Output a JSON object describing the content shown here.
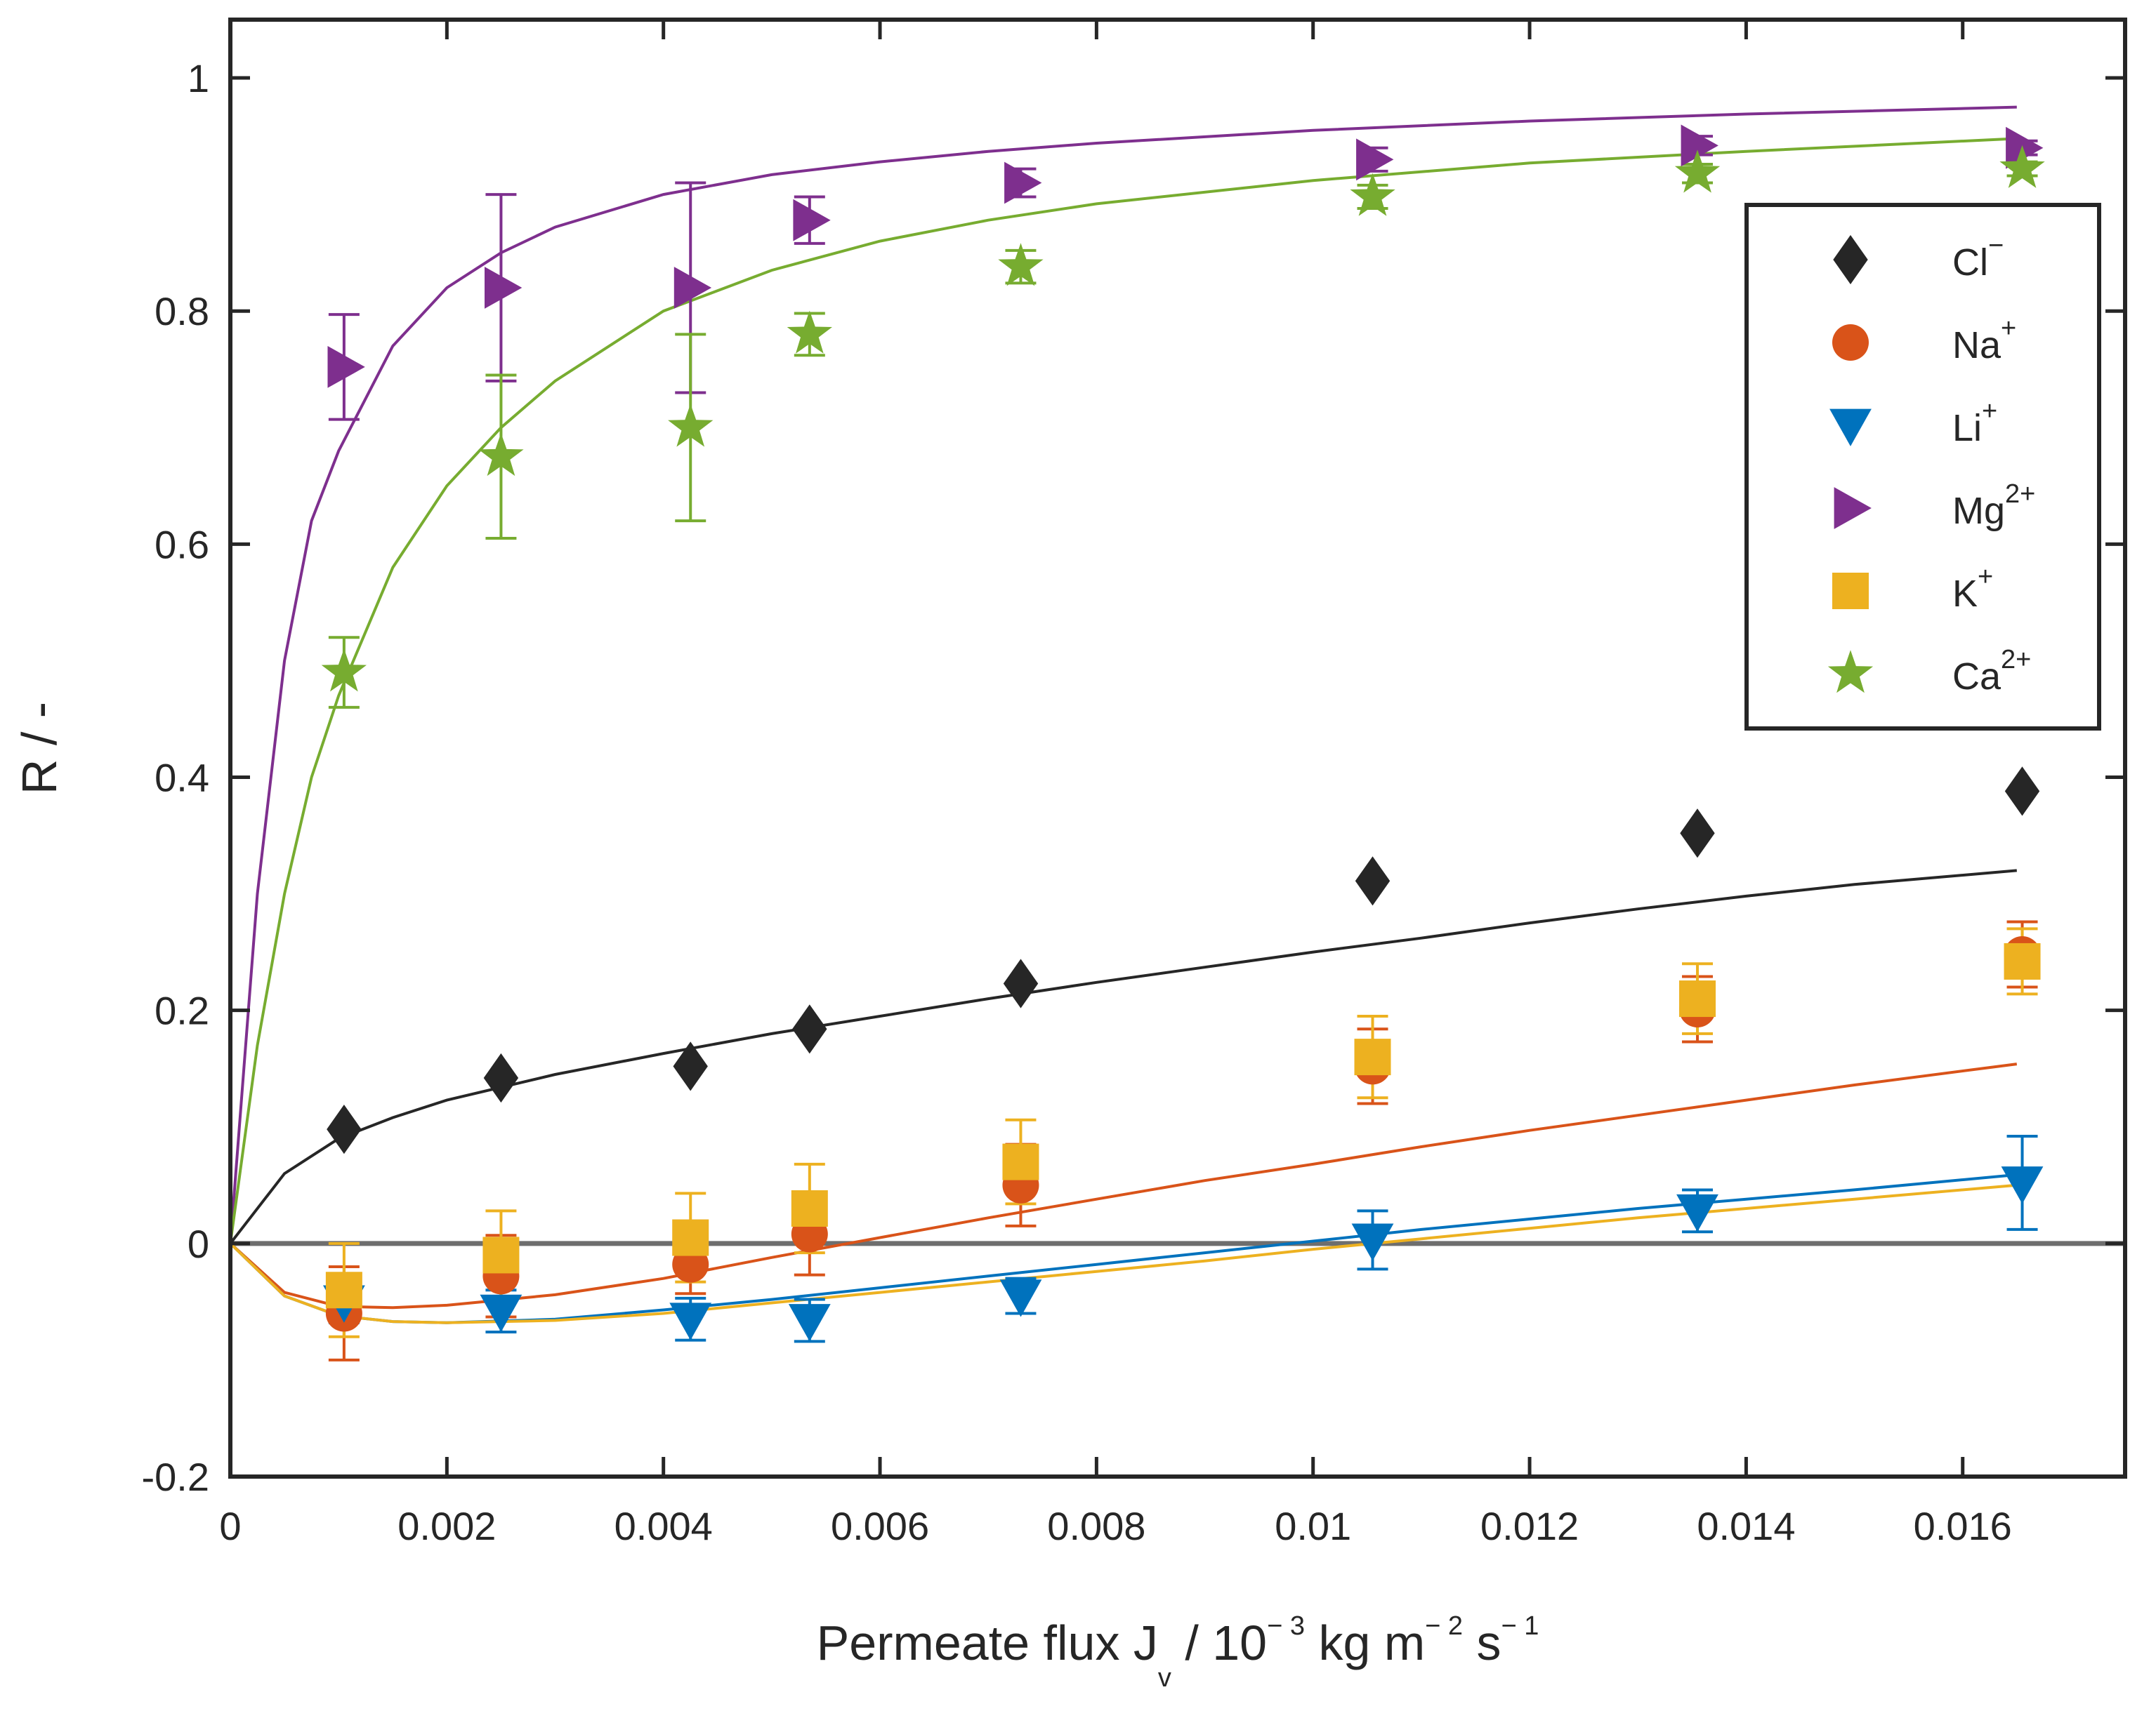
{
  "chart_data": {
    "type": "scatter",
    "title": "",
    "xlabel": {
      "main": "Permeate flux J",
      "sub": "v",
      "mid": " / 10",
      "exp1": "− 3",
      "mid2": " kg m",
      "exp2": "− 2",
      "mid3": " s",
      "exp3": "− 1"
    },
    "ylabel": "R / -",
    "xlim": [
      0,
      0.0175
    ],
    "ylim": [
      -0.2,
      1.05
    ],
    "xticks": [
      0,
      0.002,
      0.004,
      0.006,
      0.008,
      0.01,
      0.012,
      0.014,
      0.016
    ],
    "xtick_labels": [
      "0",
      "0.002",
      "0.004",
      "0.006",
      "0.008",
      "0.01",
      "0.012",
      "0.014",
      "0.016"
    ],
    "yticks": [
      -0.2,
      0,
      0.2,
      0.4,
      0.6,
      0.8,
      1
    ],
    "ytick_labels": [
      "-0.2",
      "0",
      "0.2",
      "0.4",
      "0.6",
      "0.8",
      "1"
    ],
    "reference_line": 0,
    "legend_position": "top-right",
    "x": [
      0.00105,
      0.0025,
      0.00425,
      0.00535,
      0.0073,
      0.01055,
      0.01355,
      0.01655
    ],
    "series": [
      {
        "name": "Cl",
        "sup": "−",
        "color": "#262626",
        "marker": "diamond",
        "values": [
          0.098,
          0.142,
          0.152,
          0.184,
          0.223,
          0.311,
          0.352,
          0.388
        ],
        "errors": [
          0,
          0,
          0,
          0,
          0,
          0,
          0,
          0
        ],
        "fit_x": [
          0,
          0.0005,
          0.001,
          0.0015,
          0.002,
          0.003,
          0.004,
          0.005,
          0.006,
          0.007,
          0.008,
          0.009,
          0.01,
          0.011,
          0.012,
          0.013,
          0.014,
          0.015,
          0.0165
        ],
        "fit_y": [
          0,
          0.06,
          0.09,
          0.108,
          0.123,
          0.145,
          0.163,
          0.18,
          0.195,
          0.21,
          0.224,
          0.237,
          0.25,
          0.262,
          0.275,
          0.287,
          0.298,
          0.308,
          0.32
        ]
      },
      {
        "name": "Na",
        "sup": "+",
        "color": "#D95319",
        "marker": "circle",
        "values": [
          -0.06,
          -0.028,
          -0.018,
          0.008,
          0.05,
          0.152,
          0.201,
          0.248
        ],
        "errors": [
          0.04,
          0.035,
          0.025,
          0.035,
          0.035,
          0.032,
          0.028,
          0.028
        ],
        "fit_x": [
          0,
          0.0005,
          0.001,
          0.0015,
          0.002,
          0.003,
          0.004,
          0.005,
          0.006,
          0.007,
          0.008,
          0.009,
          0.01,
          0.011,
          0.012,
          0.013,
          0.014,
          0.015,
          0.0165
        ],
        "fit_y": [
          0,
          -0.042,
          -0.054,
          -0.055,
          -0.053,
          -0.044,
          -0.03,
          -0.012,
          0.005,
          0.022,
          0.038,
          0.054,
          0.068,
          0.083,
          0.097,
          0.11,
          0.123,
          0.136,
          0.154
        ]
      },
      {
        "name": "Li",
        "sup": "+",
        "color": "#0072BD",
        "marker": "triangle-down",
        "values": [
          -0.05,
          -0.058,
          -0.065,
          -0.066,
          -0.045,
          0.003,
          0.028,
          0.052
        ],
        "errors": [
          0.018,
          0.018,
          0.018,
          0.018,
          0.015,
          0.025,
          0.018,
          0.04
        ],
        "fit_x": [
          0,
          0.0005,
          0.001,
          0.0015,
          0.002,
          0.003,
          0.004,
          0.005,
          0.006,
          0.007,
          0.008,
          0.009,
          0.01,
          0.011,
          0.012,
          0.013,
          0.014,
          0.015,
          0.0165
        ],
        "fit_y": [
          0,
          -0.045,
          -0.062,
          -0.067,
          -0.068,
          -0.065,
          -0.057,
          -0.048,
          -0.038,
          -0.028,
          -0.018,
          -0.008,
          0.002,
          0.012,
          0.021,
          0.03,
          0.038,
          0.046,
          0.059
        ]
      },
      {
        "name": "Mg",
        "sup": "2+",
        "color": "#7E2F8E",
        "marker": "triangle-right",
        "values": [
          0.752,
          0.82,
          0.82,
          0.878,
          0.91,
          0.93,
          0.942,
          0.94
        ],
        "errors": [
          0.045,
          0.08,
          0.09,
          0.02,
          0.012,
          0.01,
          0.008,
          0.006
        ],
        "fit_x": [
          0,
          0.00025,
          0.0005,
          0.00075,
          0.001,
          0.0015,
          0.002,
          0.0025,
          0.003,
          0.004,
          0.005,
          0.006,
          0.007,
          0.008,
          0.01,
          0.012,
          0.014,
          0.0165
        ],
        "fit_y": [
          0,
          0.3,
          0.5,
          0.62,
          0.68,
          0.77,
          0.82,
          0.85,
          0.872,
          0.9,
          0.917,
          0.928,
          0.937,
          0.944,
          0.955,
          0.963,
          0.969,
          0.975
        ]
      },
      {
        "name": "K",
        "sup": "+",
        "color": "#EDB120",
        "marker": "square",
        "values": [
          -0.04,
          -0.01,
          0.005,
          0.03,
          0.07,
          0.16,
          0.21,
          0.242
        ],
        "errors": [
          0.04,
          0.038,
          0.038,
          0.038,
          0.036,
          0.035,
          0.03,
          0.028
        ],
        "fit_x": [
          0,
          0.0005,
          0.001,
          0.0015,
          0.002,
          0.003,
          0.004,
          0.005,
          0.006,
          0.007,
          0.008,
          0.009,
          0.01,
          0.011,
          0.012,
          0.013,
          0.014,
          0.015,
          0.0165
        ],
        "fit_y": [
          0,
          -0.045,
          -0.062,
          -0.067,
          -0.068,
          -0.066,
          -0.06,
          -0.051,
          -0.042,
          -0.033,
          -0.024,
          -0.015,
          -0.005,
          0.004,
          0.013,
          0.022,
          0.03,
          0.038,
          0.05
        ]
      },
      {
        "name": "Ca",
        "sup": "2+",
        "color": "#77AC30",
        "marker": "star",
        "values": [
          0.49,
          0.675,
          0.7,
          0.78,
          0.838,
          0.898,
          0.918,
          0.922
        ],
        "errors": [
          0.03,
          0.07,
          0.08,
          0.018,
          0.014,
          0.01,
          0.008,
          0.006
        ],
        "fit_x": [
          0,
          0.00025,
          0.0005,
          0.00075,
          0.001,
          0.0015,
          0.002,
          0.0025,
          0.003,
          0.004,
          0.005,
          0.006,
          0.007,
          0.008,
          0.01,
          0.012,
          0.014,
          0.0165
        ],
        "fit_y": [
          0,
          0.17,
          0.3,
          0.4,
          0.47,
          0.58,
          0.65,
          0.7,
          0.74,
          0.8,
          0.835,
          0.86,
          0.878,
          0.892,
          0.912,
          0.927,
          0.937,
          0.948
        ]
      }
    ]
  }
}
